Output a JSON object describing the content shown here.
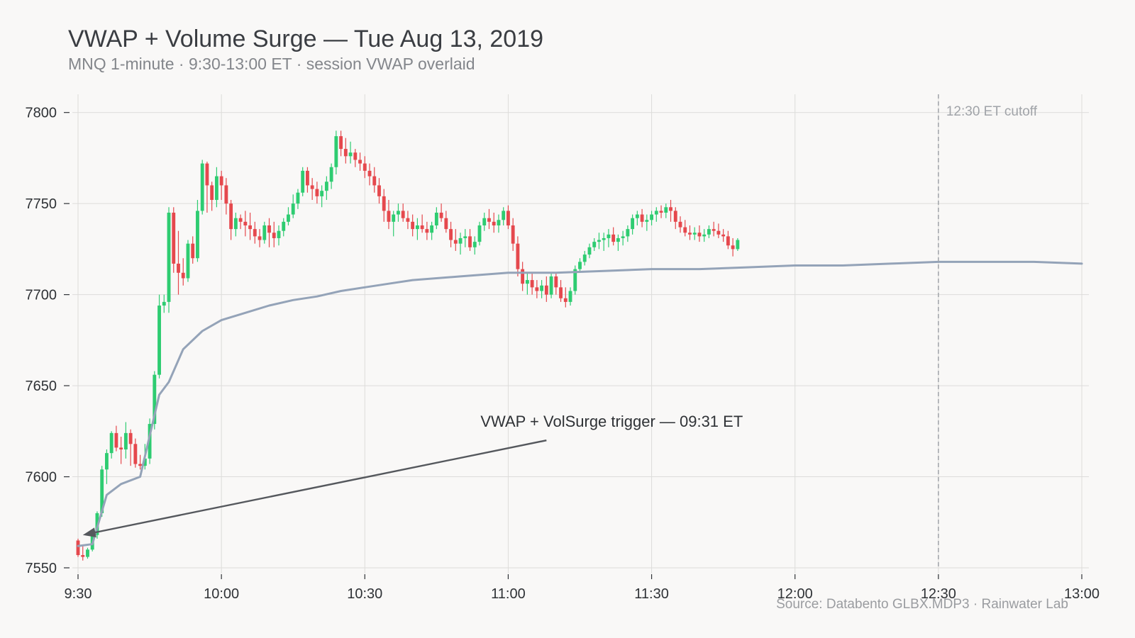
{
  "chart_data": {
    "type": "candlestick",
    "title": "VWAP + Volume Surge — Tue Aug 13, 2019",
    "subtitle": "MNQ 1-minute · 9:30-13:00 ET · session VWAP overlaid",
    "source": "Source: Databento GLBX.MDP3 · Rainwater Lab",
    "xlim": [
      "9:30",
      "13:00"
    ],
    "ylim": [
      7550,
      7810
    ],
    "x_ticks": [
      "9:30",
      "10:00",
      "10:30",
      "11:00",
      "11:30",
      "12:00",
      "12:30",
      "13:00"
    ],
    "y_ticks": [
      7550,
      7600,
      7650,
      7700,
      7750,
      7800
    ],
    "grid": true,
    "colors": {
      "up": "#2ecc71",
      "down": "#e5484d",
      "vwap": "#94a3b8",
      "cutoff": "#a0a3a8",
      "annotation": "#55585d",
      "grid": "#dddcda"
    },
    "candles_ohlc": [
      [
        7565,
        7566,
        7556,
        7557
      ],
      [
        7557,
        7562,
        7554,
        7556
      ],
      [
        7556,
        7561,
        7555,
        7560
      ],
      [
        7560,
        7570,
        7559,
        7568
      ],
      [
        7568,
        7581,
        7566,
        7580
      ],
      [
        7580,
        7606,
        7578,
        7604
      ],
      [
        7604,
        7615,
        7596,
        7613
      ],
      [
        7613,
        7625,
        7610,
        7624
      ],
      [
        7624,
        7628,
        7614,
        7616
      ],
      [
        7616,
        7622,
        7607,
        7615
      ],
      [
        7615,
        7630,
        7610,
        7624
      ],
      [
        7624,
        7626,
        7606,
        7618
      ],
      [
        7618,
        7621,
        7605,
        7607
      ],
      [
        7607,
        7612,
        7604,
        7606
      ],
      [
        7606,
        7618,
        7604,
        7610
      ],
      [
        7610,
        7632,
        7607,
        7629
      ],
      [
        7629,
        7658,
        7626,
        7656
      ],
      [
        7656,
        7700,
        7654,
        7694
      ],
      [
        7694,
        7700,
        7690,
        7696
      ],
      [
        7696,
        7748,
        7690,
        7745
      ],
      [
        7745,
        7748,
        7712,
        7717
      ],
      [
        7717,
        7735,
        7700,
        7712
      ],
      [
        7712,
        7720,
        7705,
        7709
      ],
      [
        7709,
        7730,
        7707,
        7728
      ],
      [
        7728,
        7732,
        7717,
        7720
      ],
      [
        7720,
        7752,
        7718,
        7746
      ],
      [
        7746,
        7774,
        7744,
        7772
      ],
      [
        7772,
        7773,
        7745,
        7760
      ],
      [
        7760,
        7762,
        7746,
        7752
      ],
      [
        7752,
        7770,
        7748,
        7765
      ],
      [
        7765,
        7768,
        7752,
        7760
      ],
      [
        7760,
        7764,
        7744,
        7750
      ],
      [
        7750,
        7752,
        7730,
        7736
      ],
      [
        7736,
        7745,
        7732,
        7742
      ],
      [
        7742,
        7744,
        7736,
        7740
      ],
      [
        7740,
        7746,
        7732,
        7738
      ],
      [
        7738,
        7745,
        7730,
        7736
      ],
      [
        7736,
        7740,
        7728,
        7732
      ],
      [
        7732,
        7736,
        7726,
        7730
      ],
      [
        7730,
        7740,
        7728,
        7738
      ],
      [
        7738,
        7742,
        7726,
        7734
      ],
      [
        7734,
        7740,
        7726,
        7731
      ],
      [
        7731,
        7738,
        7727,
        7735
      ],
      [
        7735,
        7742,
        7732,
        7740
      ],
      [
        7740,
        7748,
        7738,
        7744
      ],
      [
        7744,
        7755,
        7742,
        7750
      ],
      [
        7750,
        7758,
        7747,
        7756
      ],
      [
        7756,
        7770,
        7754,
        7768
      ],
      [
        7768,
        7770,
        7756,
        7760
      ],
      [
        7760,
        7764,
        7752,
        7758
      ],
      [
        7758,
        7762,
        7750,
        7754
      ],
      [
        7754,
        7760,
        7748,
        7757
      ],
      [
        7757,
        7765,
        7752,
        7762
      ],
      [
        7762,
        7772,
        7758,
        7770
      ],
      [
        7770,
        7790,
        7766,
        7787
      ],
      [
        7787,
        7790,
        7776,
        7780
      ],
      [
        7780,
        7786,
        7772,
        7776
      ],
      [
        7776,
        7784,
        7772,
        7778
      ],
      [
        7778,
        7780,
        7770,
        7774
      ],
      [
        7774,
        7778,
        7768,
        7772
      ],
      [
        7772,
        7776,
        7764,
        7768
      ],
      [
        7768,
        7772,
        7760,
        7765
      ],
      [
        7765,
        7770,
        7756,
        7760
      ],
      [
        7760,
        7764,
        7750,
        7754
      ],
      [
        7754,
        7758,
        7740,
        7746
      ],
      [
        7746,
        7752,
        7736,
        7740
      ],
      [
        7740,
        7746,
        7732,
        7744
      ],
      [
        7744,
        7750,
        7740,
        7746
      ],
      [
        7746,
        7750,
        7740,
        7742
      ],
      [
        7742,
        7746,
        7736,
        7740
      ],
      [
        7740,
        7744,
        7732,
        7736
      ],
      [
        7736,
        7742,
        7730,
        7738
      ],
      [
        7738,
        7744,
        7734,
        7736
      ],
      [
        7736,
        7740,
        7730,
        7734
      ],
      [
        7734,
        7740,
        7730,
        7738
      ],
      [
        7738,
        7748,
        7736,
        7745
      ],
      [
        7745,
        7750,
        7740,
        7742
      ],
      [
        7742,
        7746,
        7734,
        7736
      ],
      [
        7736,
        7740,
        7726,
        7730
      ],
      [
        7730,
        7736,
        7724,
        7728
      ],
      [
        7728,
        7734,
        7722,
        7731
      ],
      [
        7731,
        7736,
        7726,
        7732
      ],
      [
        7732,
        7736,
        7724,
        7726
      ],
      [
        7726,
        7732,
        7722,
        7729
      ],
      [
        7729,
        7740,
        7727,
        7738
      ],
      [
        7738,
        7745,
        7735,
        7742
      ],
      [
        7742,
        7747,
        7736,
        7740
      ],
      [
        7740,
        7745,
        7734,
        7738
      ],
      [
        7738,
        7744,
        7734,
        7741
      ],
      [
        7741,
        7748,
        7738,
        7746
      ],
      [
        7746,
        7749,
        7736,
        7738
      ],
      [
        7738,
        7742,
        7724,
        7728
      ],
      [
        7728,
        7732,
        7710,
        7714
      ],
      [
        7714,
        7718,
        7702,
        7706
      ],
      [
        7706,
        7712,
        7700,
        7708
      ],
      [
        7708,
        7712,
        7700,
        7704
      ],
      [
        7704,
        7708,
        7698,
        7702
      ],
      [
        7702,
        7708,
        7698,
        7705
      ],
      [
        7705,
        7710,
        7696,
        7700
      ],
      [
        7700,
        7712,
        7698,
        7710
      ],
      [
        7710,
        7712,
        7700,
        7704
      ],
      [
        7704,
        7708,
        7696,
        7698
      ],
      [
        7698,
        7704,
        7693,
        7696
      ],
      [
        7696,
        7704,
        7694,
        7702
      ],
      [
        7702,
        7716,
        7700,
        7714
      ],
      [
        7714,
        7720,
        7712,
        7718
      ],
      [
        7718,
        7724,
        7716,
        7722
      ],
      [
        7722,
        7728,
        7720,
        7726
      ],
      [
        7726,
        7731,
        7724,
        7729
      ],
      [
        7729,
        7734,
        7725,
        7730
      ],
      [
        7730,
        7734,
        7724,
        7731
      ],
      [
        7731,
        7736,
        7726,
        7733
      ],
      [
        7733,
        7737,
        7727,
        7729
      ],
      [
        7729,
        7733,
        7724,
        7731
      ],
      [
        7731,
        7735,
        7727,
        7732
      ],
      [
        7732,
        7738,
        7729,
        7736
      ],
      [
        7736,
        7744,
        7733,
        7742
      ],
      [
        7742,
        7746,
        7738,
        7744
      ],
      [
        7744,
        7747,
        7737,
        7740
      ],
      [
        7740,
        7744,
        7735,
        7741
      ],
      [
        7741,
        7746,
        7738,
        7744
      ],
      [
        7744,
        7748,
        7740,
        7746
      ],
      [
        7746,
        7749,
        7742,
        7745
      ],
      [
        7745,
        7750,
        7742,
        7748
      ],
      [
        7748,
        7752,
        7740,
        7746
      ],
      [
        7746,
        7748,
        7736,
        7740
      ],
      [
        7740,
        7743,
        7734,
        7737
      ],
      [
        7737,
        7741,
        7732,
        7734
      ],
      [
        7734,
        7738,
        7730,
        7733
      ],
      [
        7733,
        7737,
        7730,
        7734
      ],
      [
        7734,
        7738,
        7729,
        7732
      ],
      [
        7732,
        7736,
        7729,
        7733
      ],
      [
        7733,
        7738,
        7731,
        7736
      ],
      [
        7736,
        7740,
        7732,
        7735
      ],
      [
        7735,
        7739,
        7731,
        7733
      ],
      [
        7733,
        7736,
        7729,
        7732
      ],
      [
        7732,
        7735,
        7725,
        7727
      ],
      [
        7727,
        7731,
        7721,
        7725
      ],
      [
        7725,
        7731,
        7724,
        7730
      ]
    ],
    "vwap": [
      [
        0,
        7562
      ],
      [
        3,
        7563
      ],
      [
        6,
        7590
      ],
      [
        9,
        7596
      ],
      [
        13,
        7600
      ],
      [
        17,
        7645
      ],
      [
        19,
        7652
      ],
      [
        22,
        7670
      ],
      [
        26,
        7680
      ],
      [
        30,
        7686
      ],
      [
        35,
        7690
      ],
      [
        40,
        7694
      ],
      [
        45,
        7697
      ],
      [
        50,
        7699
      ],
      [
        55,
        7702
      ],
      [
        60,
        7704
      ],
      [
        65,
        7706
      ],
      [
        70,
        7708
      ],
      [
        80,
        7710
      ],
      [
        90,
        7712
      ],
      [
        100,
        7712
      ],
      [
        110,
        7713
      ],
      [
        120,
        7714
      ],
      [
        130,
        7714
      ],
      [
        140,
        7715
      ],
      [
        150,
        7716
      ],
      [
        160,
        7716
      ],
      [
        170,
        7717
      ],
      [
        180,
        7718
      ],
      [
        190,
        7718
      ],
      [
        200,
        7718
      ],
      [
        210,
        7717
      ]
    ],
    "cutoff": {
      "time": "12:30",
      "label": "12:30 ET cutoff"
    },
    "annotation": {
      "text": "VWAP + VolSurge trigger — 09:31 ET",
      "target_time": "09:31",
      "target_value": 7568,
      "text_time": "11:08",
      "text_value": 7620
    }
  }
}
